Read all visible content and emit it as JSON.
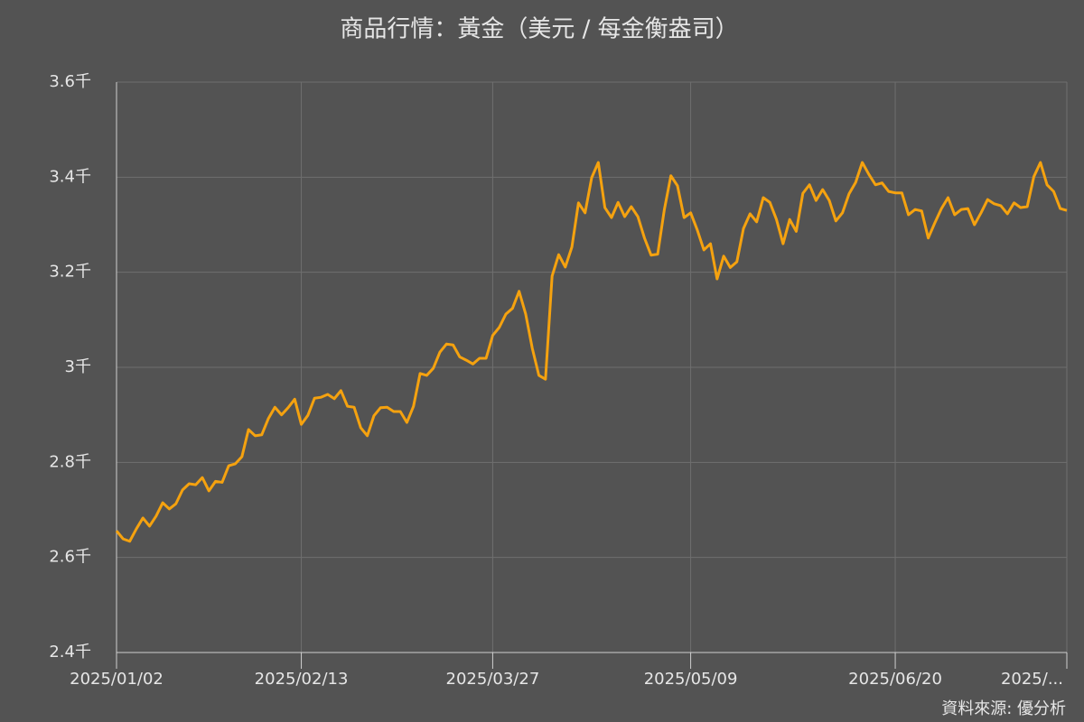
{
  "chart_data": {
    "type": "line",
    "title": "商品行情：黃金（美元 / 每金衡盎司）",
    "source": "資料來源: 優分析",
    "categories": [
      "2025/01/02",
      null,
      null,
      null,
      null,
      null,
      null,
      null,
      null,
      null,
      null,
      null,
      null,
      null,
      null,
      null,
      null,
      null,
      null,
      null,
      null,
      null,
      null,
      null,
      null,
      null,
      null,
      null,
      "2025/02/13",
      null,
      null,
      null,
      null,
      null,
      null,
      null,
      null,
      null,
      null,
      null,
      null,
      null,
      null,
      null,
      null,
      null,
      null,
      null,
      null,
      null,
      null,
      null,
      null,
      null,
      null,
      null,
      null,
      "2025/03/27",
      null,
      null,
      null,
      null,
      null,
      null,
      null,
      null,
      null,
      null,
      null,
      null,
      null,
      null,
      null,
      null,
      null,
      null,
      null,
      null,
      null,
      null,
      null,
      null,
      null,
      null,
      null,
      null,
      null,
      "2025/05/09",
      null,
      null,
      null,
      null,
      null,
      null,
      null,
      null,
      null,
      null,
      null,
      null,
      null,
      null,
      null,
      null,
      null,
      null,
      null,
      null,
      null,
      null,
      null,
      null,
      null,
      null,
      null,
      null,
      null,
      null,
      "2025/06/20",
      null,
      null,
      null,
      null,
      null,
      null,
      null,
      null,
      null,
      null,
      null,
      null,
      null,
      null,
      null,
      null,
      null,
      null,
      null,
      null,
      null,
      null,
      null,
      null,
      null,
      "2025/..."
    ],
    "series": [
      {
        "name": "黃金",
        "color": "#f5a20f",
        "values": [
          2656,
          2639,
          2634,
          2660,
          2683,
          2666,
          2687,
          2715,
          2702,
          2713,
          2742,
          2755,
          2753,
          2768,
          2740,
          2760,
          2758,
          2793,
          2797,
          2812,
          2869,
          2856,
          2858,
          2892,
          2916,
          2900,
          2915,
          2933,
          2880,
          2899,
          2935,
          2937,
          2943,
          2934,
          2951,
          2918,
          2916,
          2873,
          2856,
          2898,
          2915,
          2916,
          2907,
          2907,
          2884,
          2918,
          2987,
          2983,
          2998,
          3032,
          3049,
          3047,
          3022,
          3015,
          3007,
          3019,
          3019,
          3067,
          3084,
          3112,
          3124,
          3160,
          3112,
          3040,
          2983,
          2975,
          3192,
          3237,
          3211,
          3253,
          3346,
          3325,
          3399,
          3431,
          3336,
          3315,
          3347,
          3317,
          3338,
          3317,
          3272,
          3236,
          3238,
          3331,
          3403,
          3382,
          3315,
          3325,
          3289,
          3247,
          3260,
          3186,
          3234,
          3210,
          3222,
          3292,
          3323,
          3306,
          3357,
          3347,
          3311,
          3260,
          3311,
          3286,
          3366,
          3384,
          3351,
          3374,
          3351,
          3308,
          3325,
          3365,
          3389,
          3431,
          3406,
          3384,
          3388,
          3370,
          3367,
          3367,
          3321,
          3332,
          3329,
          3272,
          3304,
          3334,
          3357,
          3321,
          3332,
          3334,
          3300,
          3325,
          3353,
          3344,
          3340,
          3323,
          3346,
          3336,
          3338,
          3401,
          3431,
          3384,
          3370,
          3334,
          3330
        ]
      }
    ],
    "ylim": [
      2400,
      3600
    ],
    "yticks": [
      {
        "value": 2400,
        "label": "2.4千"
      },
      {
        "value": 2600,
        "label": "2.6千"
      },
      {
        "value": 2800,
        "label": "2.8千"
      },
      {
        "value": 3000,
        "label": "3千"
      },
      {
        "value": 3200,
        "label": "3.2千"
      },
      {
        "value": 3400,
        "label": "3.4千"
      },
      {
        "value": 3600,
        "label": "3.6千"
      }
    ],
    "grid": true
  }
}
